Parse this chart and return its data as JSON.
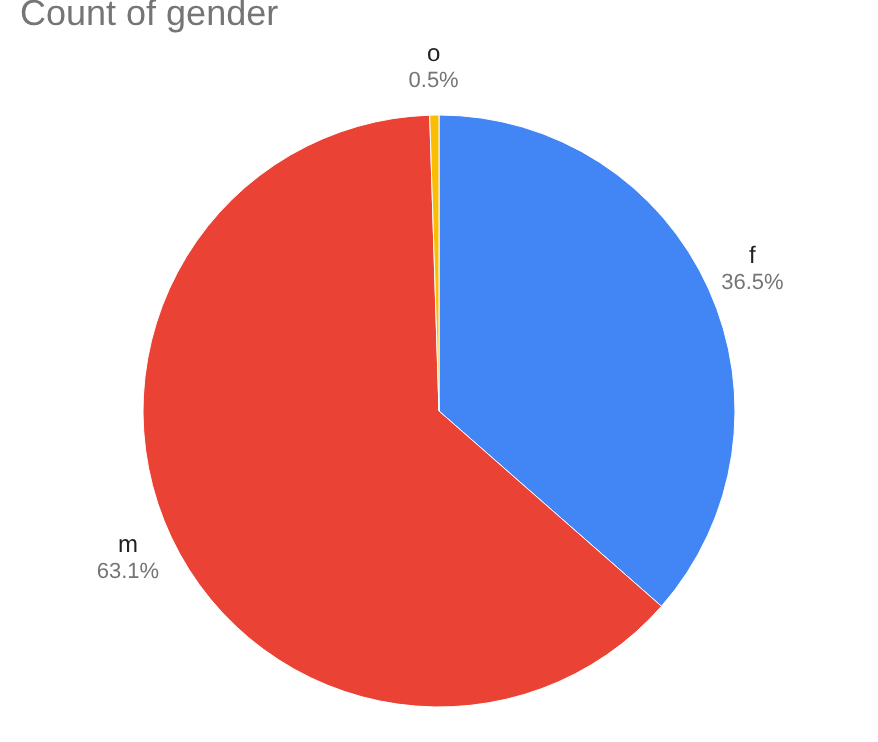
{
  "chart_data": {
    "type": "pie",
    "title": "Count of gender",
    "categories": [
      "f",
      "m",
      "o"
    ],
    "values": [
      36.5,
      63.1,
      0.5
    ],
    "value_labels": [
      "36.5%",
      "63.1%",
      "0.5%"
    ],
    "colors": [
      "#4285f4",
      "#ea4335",
      "#fbbc04"
    ],
    "legend": false
  }
}
